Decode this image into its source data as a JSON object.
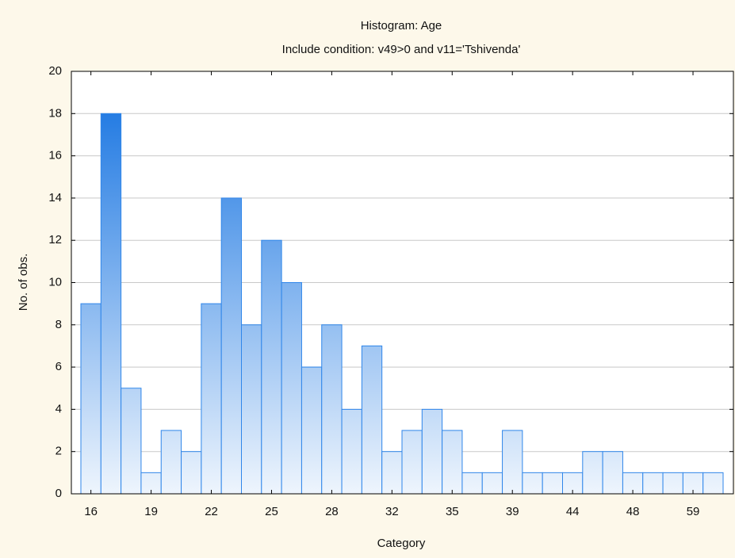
{
  "chart_data": {
    "type": "bar",
    "title": "Histogram: Age",
    "subtitle": "Include condition: v49>0  and v11='Tshivenda'",
    "x_label": "Category",
    "y_label": "No. of obs.",
    "categories": [
      "16",
      null,
      null,
      "19",
      null,
      null,
      "22",
      null,
      null,
      "25",
      null,
      null,
      "28",
      null,
      null,
      "32",
      null,
      null,
      "35",
      null,
      null,
      "39",
      null,
      null,
      "44",
      null,
      null,
      "48",
      null,
      null,
      "59",
      null
    ],
    "values": [
      9,
      18,
      5,
      1,
      3,
      2,
      9,
      14,
      8,
      12,
      10,
      6,
      8,
      4,
      7,
      2,
      3,
      4,
      3,
      1,
      1,
      3,
      1,
      1,
      1,
      2,
      2,
      1,
      1,
      1,
      1,
      1
    ],
    "color": "#2f86ea",
    "ylim": [
      0,
      20
    ],
    "yticks": [
      0,
      2,
      4,
      6,
      8,
      10,
      12,
      14,
      16,
      18,
      20
    ],
    "grid": true
  }
}
